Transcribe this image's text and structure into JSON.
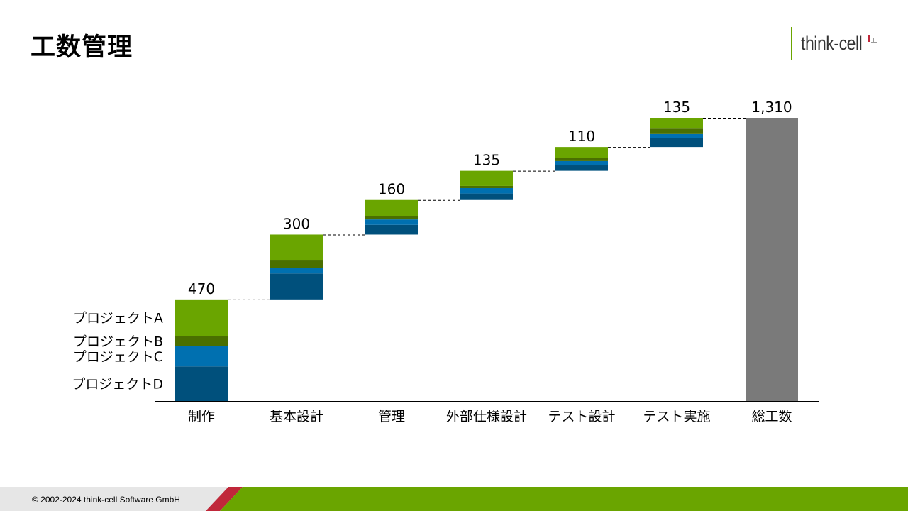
{
  "slide": {
    "title": "工数管理",
    "logo_text": "think-cell",
    "footer": "© 2002-2024 think-cell Software GmbH"
  },
  "colors": {
    "project_a": "#6aa500",
    "project_b": "#4a6f00",
    "project_c": "#0070b0",
    "project_d": "#00507c",
    "total": "#7a7a7a",
    "footer_green": "#6aa500",
    "footer_red": "#c0283a",
    "footer_grey": "#e6e6e6"
  },
  "chart_data": {
    "type": "waterfall",
    "categories": [
      "制作",
      "基本設計",
      "管理",
      "外部仕様設計",
      "テスト設計",
      "テスト実施",
      "総工数"
    ],
    "series": [
      {
        "name": "プロジェクトD",
        "values": [
          160,
          120,
          45,
          30,
          25,
          40,
          null
        ]
      },
      {
        "name": "プロジェクトC",
        "values": [
          95,
          25,
          25,
          25,
          20,
          20,
          null
        ]
      },
      {
        "name": "プロジェクトB",
        "values": [
          45,
          35,
          15,
          10,
          15,
          25,
          null
        ]
      },
      {
        "name": "プロジェクトA",
        "values": [
          170,
          120,
          75,
          70,
          50,
          50,
          null
        ]
      }
    ],
    "totals": [
      470,
      300,
      160,
      135,
      110,
      135,
      1310
    ],
    "total_labels": [
      "470",
      "300",
      "160",
      "135",
      "110",
      "135",
      "1,310"
    ],
    "ylim": [
      0,
      1310
    ],
    "legend": "left of first bar",
    "connectors": "dashed"
  }
}
